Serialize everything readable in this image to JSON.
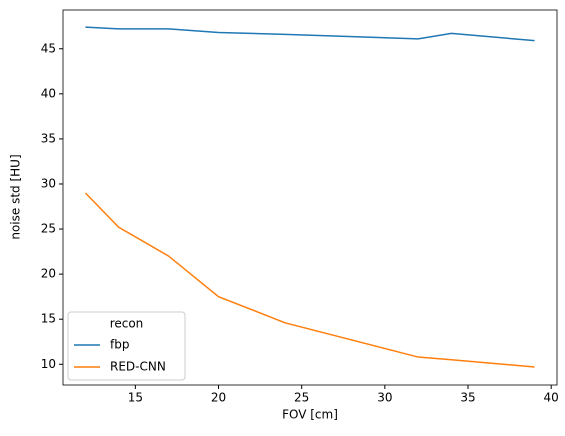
{
  "chart_data": {
    "type": "line",
    "xlabel": "FOV [cm]",
    "ylabel": "noise std [HU]",
    "x": [
      12,
      14,
      17,
      20,
      24,
      32,
      34,
      39
    ],
    "series": [
      {
        "name": "fbp",
        "color": "#1f77b4",
        "values": [
          47.4,
          47.2,
          47.2,
          46.8,
          46.6,
          46.1,
          46.7,
          45.9
        ]
      },
      {
        "name": "RED-CNN",
        "color": "#ff7f0e",
        "values": [
          29.0,
          25.2,
          22.0,
          17.5,
          14.6,
          10.8,
          10.5,
          9.7
        ]
      }
    ],
    "xlim": [
      10.65,
      40.35
    ],
    "xticks": [
      15,
      20,
      25,
      30,
      35,
      40
    ],
    "ylim": [
      7.7,
      49.3
    ],
    "yticks": [
      10,
      15,
      20,
      25,
      30,
      35,
      40,
      45
    ],
    "legend_title": "recon",
    "legend_loc": "lower left",
    "grid": false
  }
}
